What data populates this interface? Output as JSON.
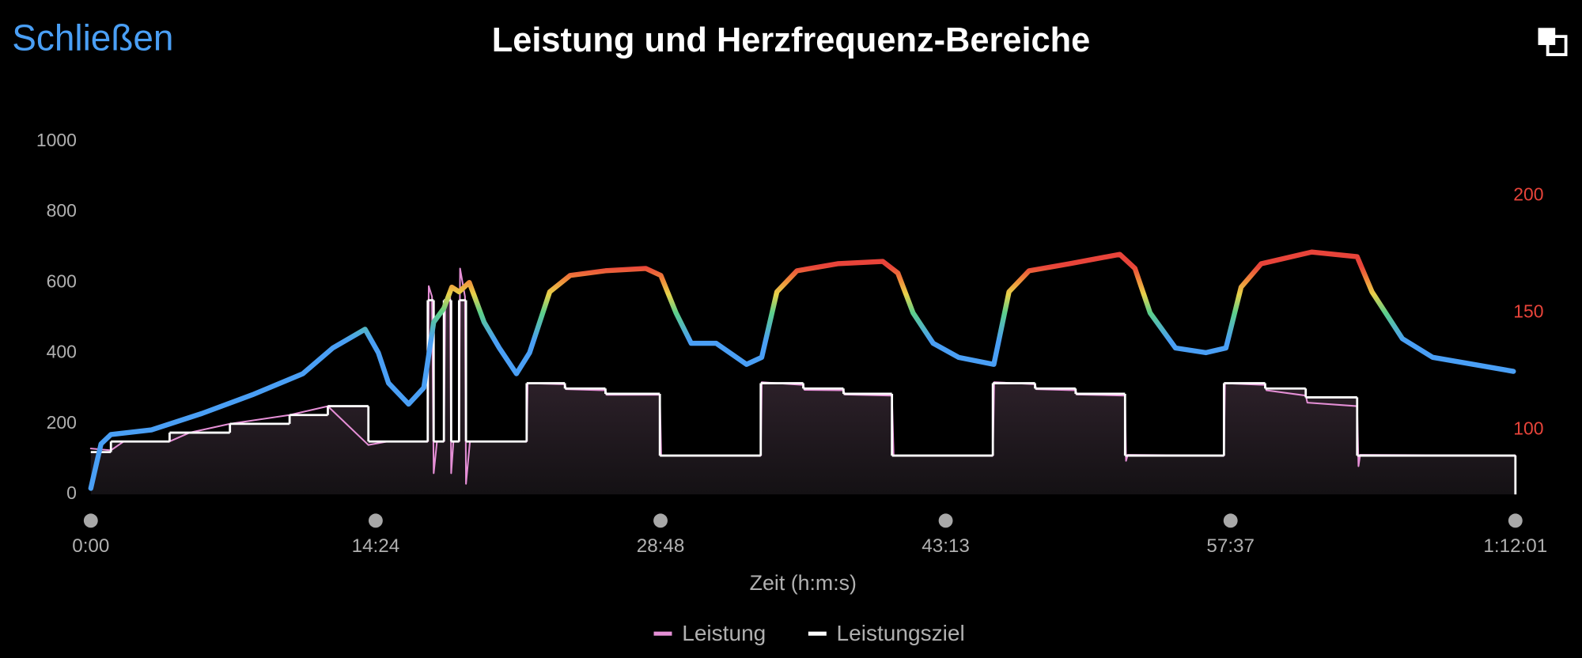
{
  "header": {
    "close": "Schließen"
  },
  "chart_data": {
    "type": "line",
    "title": "Leistung und Herzfrequenz-Bereiche",
    "x_label": "Zeit (h:m:s)",
    "xlim": [
      0,
      4321
    ],
    "xticks": [
      {
        "value": 0,
        "label": "0:00"
      },
      {
        "value": 864,
        "label": "14:24"
      },
      {
        "value": 1728,
        "label": "28:48"
      },
      {
        "value": 2593,
        "label": "43:13"
      },
      {
        "value": 3457,
        "label": "57:37"
      },
      {
        "value": 4321,
        "label": "1:12:01"
      }
    ],
    "ylim": [
      0,
      1000
    ],
    "yticks": [
      0,
      200,
      400,
      600,
      800,
      1000
    ],
    "y2lim": [
      72.4,
      223.3
    ],
    "y2ticks": [
      100,
      150,
      200
    ],
    "y2_color": "#e8443a",
    "series": [
      {
        "name": "Leistung",
        "color": "#e58fd6",
        "x": [
          0,
          61,
          100,
          239,
          300,
          422,
          603,
          719,
          842,
          900,
          1022,
          1025,
          1035,
          1040,
          1050,
          1071,
          1075,
          1090,
          1093,
          1100,
          1117,
          1120,
          1135,
          1138,
          1150,
          1322,
          1325,
          1438,
          1442,
          1561,
          1565,
          1726,
          1730,
          2032,
          2035,
          2161,
          2165,
          2283,
          2287,
          2430,
          2435,
          2736,
          2740,
          2864,
          2868,
          2987,
          2991,
          3137,
          3140,
          3145,
          3437,
          3440,
          3562,
          3566,
          3685,
          3690,
          3841,
          3845,
          3850,
          4321
        ],
        "values": [
          130,
          125,
          150,
          150,
          175,
          200,
          225,
          250,
          140,
          150,
          150,
          590,
          560,
          60,
          150,
          150,
          550,
          560,
          60,
          150,
          150,
          640,
          560,
          30,
          150,
          150,
          315,
          312,
          298,
          295,
          282,
          282,
          110,
          110,
          318,
          310,
          296,
          295,
          283,
          280,
          110,
          110,
          318,
          312,
          298,
          295,
          283,
          280,
          95,
          112,
          110,
          315,
          310,
          295,
          280,
          260,
          250,
          80,
          112,
          110
        ]
      },
      {
        "name": "Leistungsziel",
        "color": "#ffffff",
        "step": "post",
        "x": [
          0,
          61,
          239,
          422,
          603,
          719,
          842,
          1022,
          1040,
          1071,
          1093,
          1117,
          1138,
          1322,
          1438,
          1561,
          1726,
          2032,
          2161,
          2283,
          2430,
          2736,
          2864,
          2987,
          3137,
          3437,
          3562,
          3685,
          3841,
          4321
        ],
        "values": [
          120,
          150,
          175,
          200,
          225,
          250,
          150,
          550,
          150,
          550,
          150,
          550,
          150,
          315,
          300,
          285,
          110,
          315,
          300,
          285,
          110,
          315,
          300,
          285,
          110,
          315,
          300,
          275,
          110,
          110
        ]
      },
      {
        "axis": "y2",
        "color_stops": [
          [
            138,
            "#4a9ff5"
          ],
          [
            150,
            "#5ccf8a"
          ],
          [
            158,
            "#e8d24a"
          ],
          [
            164,
            "#f08a3a"
          ],
          [
            170,
            "#e8443a"
          ]
        ],
        "x": [
          0,
          31,
          61,
          184,
          337,
          490,
          643,
          734,
          832,
          872,
          903,
          964,
          1010,
          1040,
          1071,
          1095,
          1117,
          1148,
          1193,
          1239,
          1291,
          1331,
          1392,
          1454,
          1561,
          1683,
          1729,
          1775,
          1821,
          1897,
          1989,
          2035,
          2081,
          2142,
          2265,
          2402,
          2448,
          2494,
          2555,
          2632,
          2739,
          2785,
          2846,
          2968,
          3121,
          3167,
          3213,
          3290,
          3382,
          3443,
          3489,
          3550,
          3703,
          3841,
          3886,
          3978,
          4070,
          4193,
          4315
        ],
        "values": [
          75,
          94,
          98,
          100,
          107,
          115,
          124,
          135,
          143,
          133,
          120,
          111,
          118,
          146,
          152,
          161,
          159,
          163,
          146,
          135,
          124,
          133,
          159,
          166,
          168,
          169,
          166,
          150,
          137,
          137,
          128,
          131,
          159,
          168,
          171,
          172,
          167,
          150,
          137,
          131,
          128,
          159,
          168,
          171,
          175,
          169,
          150,
          135,
          133,
          135,
          161,
          171,
          176,
          174,
          159,
          139,
          131,
          128,
          125
        ]
      }
    ]
  }
}
